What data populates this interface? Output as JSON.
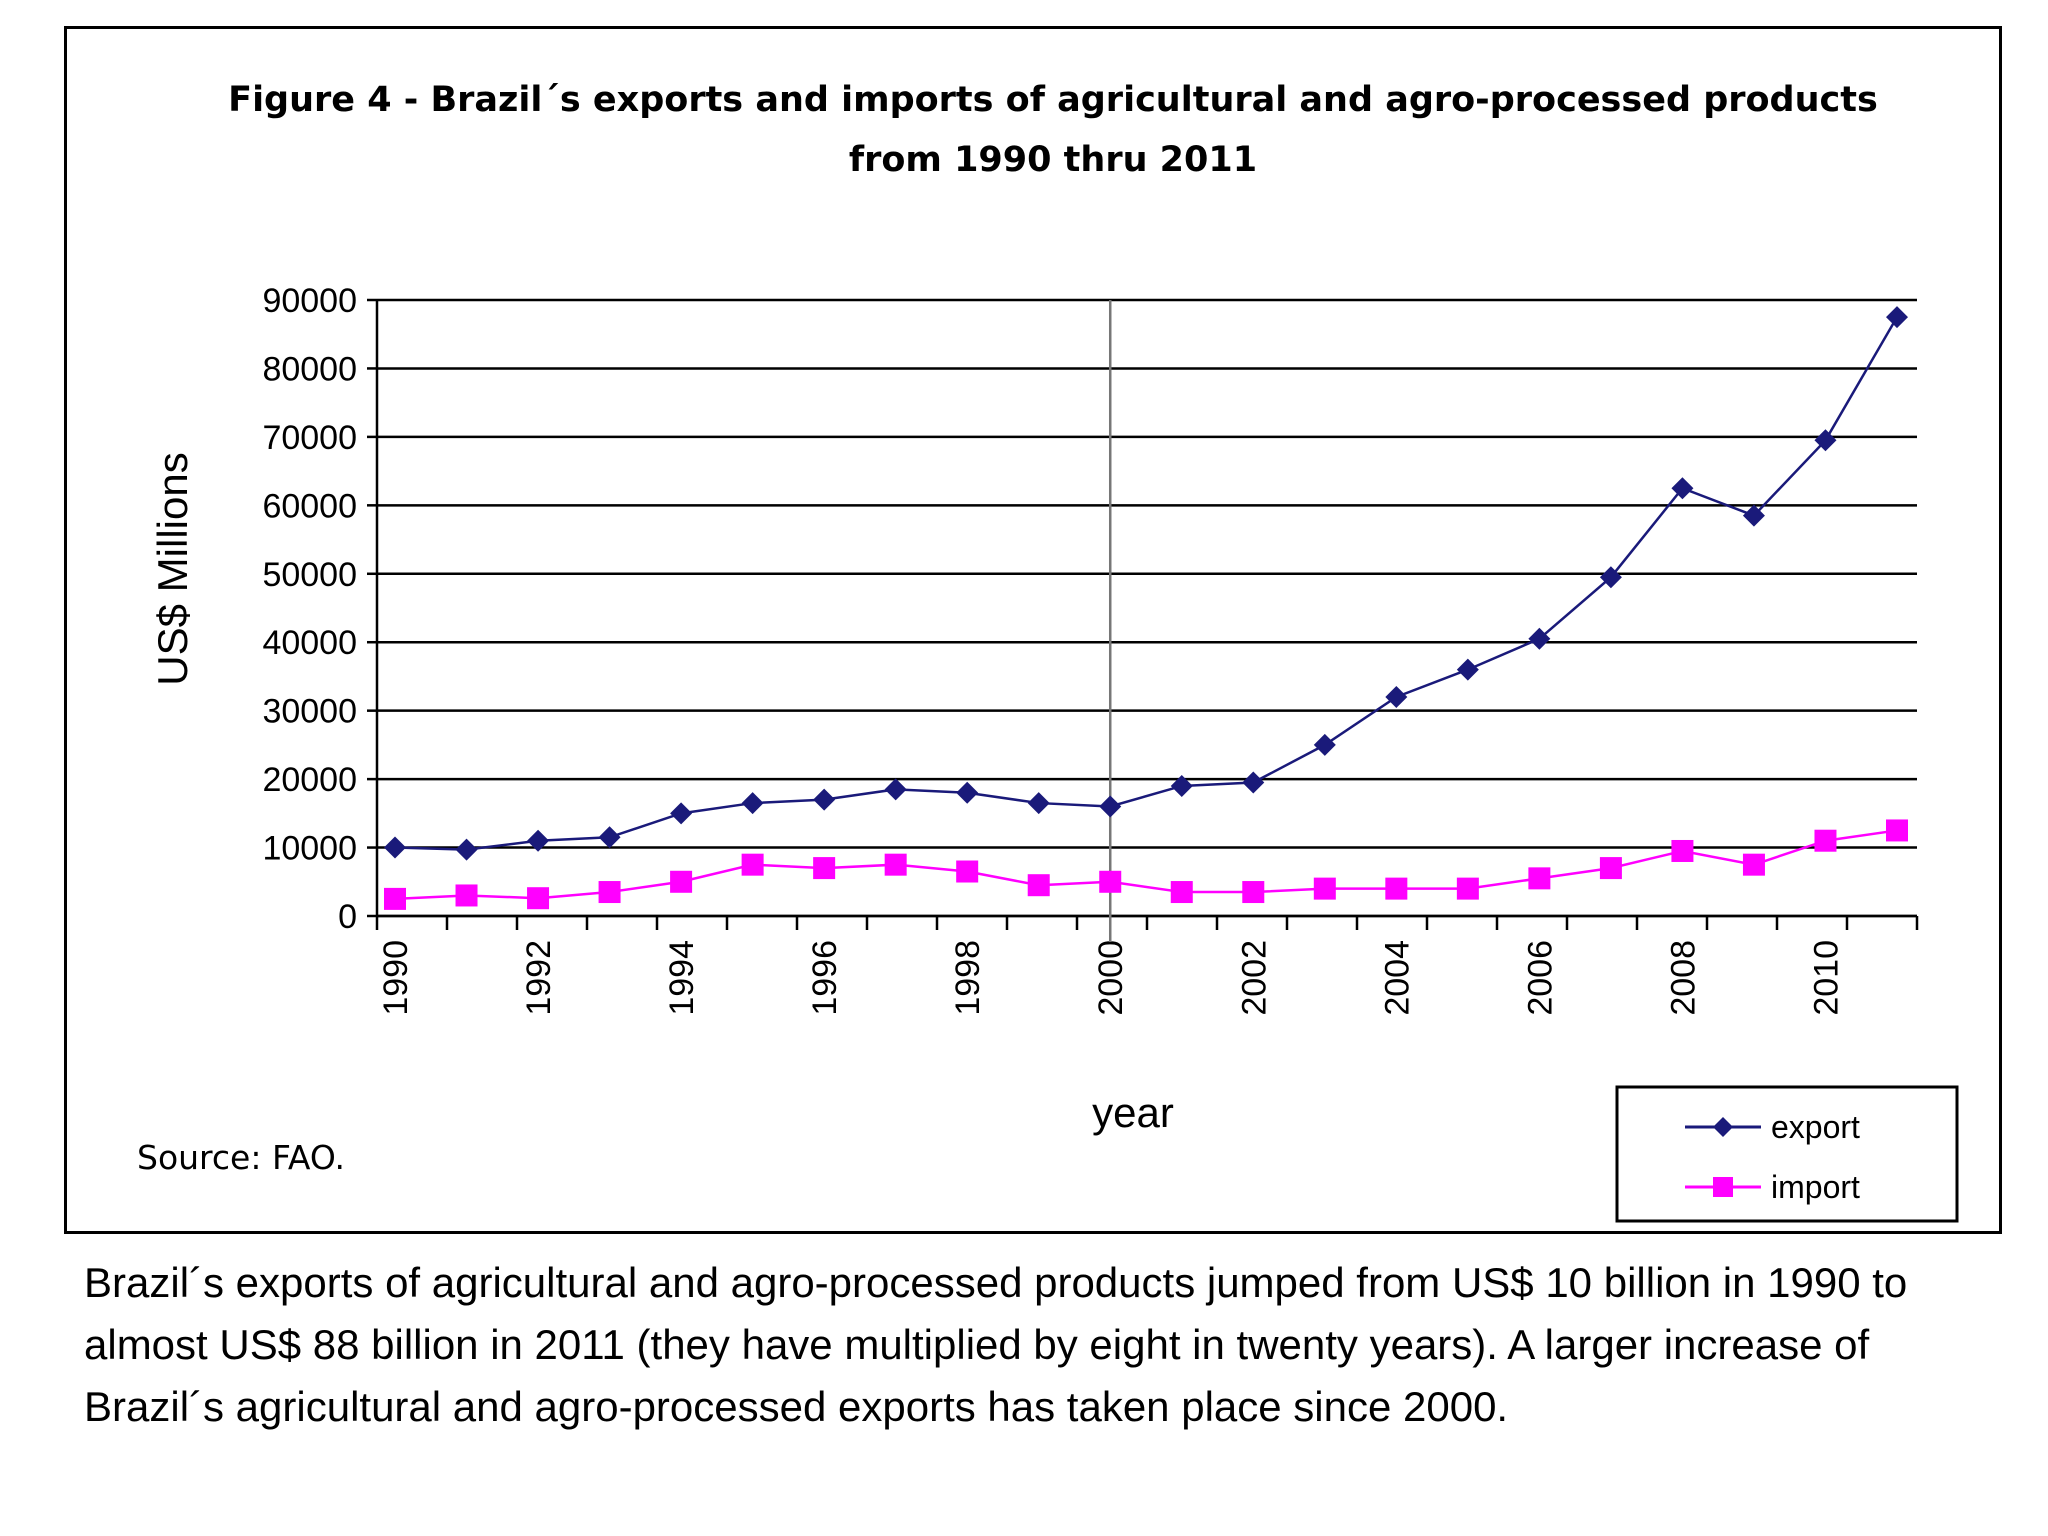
{
  "chart_data": {
    "type": "line",
    "title_line1": "Figure 4 - Brazil´s exports and imports of agricultural and agro-processed products",
    "title_line2": "from 1990 thru 2011",
    "xlabel": "year",
    "ylabel": "US$ Millions",
    "ylim": [
      0,
      90000
    ],
    "yticks": [
      "0",
      "10000",
      "20000",
      "30000",
      "40000",
      "50000",
      "60000",
      "70000",
      "80000",
      "90000"
    ],
    "ytick_values": [
      0,
      10000,
      20000,
      30000,
      40000,
      50000,
      60000,
      70000,
      80000,
      90000
    ],
    "xticks": [
      "1990",
      "1992",
      "1994",
      "1996",
      "1998",
      "2000",
      "2002",
      "2004",
      "2006",
      "2008",
      "2010"
    ],
    "x": [
      1990,
      1991,
      1992,
      1993,
      1994,
      1995,
      1996,
      1997,
      1998,
      1999,
      2000,
      2001,
      2002,
      2003,
      2004,
      2005,
      2006,
      2007,
      2008,
      2009,
      2010,
      2011
    ],
    "series": [
      {
        "name": "export",
        "color": "#1a1a7a",
        "marker": "diamond",
        "values": [
          10000,
          9700,
          11000,
          11500,
          15000,
          16500,
          17000,
          18500,
          18000,
          16500,
          16000,
          19000,
          19500,
          25000,
          32000,
          36000,
          40500,
          49500,
          62500,
          58500,
          69500,
          87500
        ]
      },
      {
        "name": "import",
        "color": "#ff00ff",
        "marker": "square",
        "values": [
          2500,
          3000,
          2600,
          3500,
          5000,
          7500,
          7000,
          7500,
          6500,
          4500,
          5000,
          3500,
          3500,
          4000,
          4000,
          4000,
          5500,
          7000,
          9500,
          7500,
          11000,
          12500
        ]
      }
    ],
    "reference_line_x": 2000,
    "grid": "horizontal",
    "legend_position": "bottom-right"
  },
  "source_note": "Source: FAO.",
  "caption": "Brazil´s exports of agricultural and agro-processed products jumped from US$ 10 billion in 1990 to almost US$ 88 billion in 2011 (they have multiplied by eight in twenty years). A larger increase of Brazil´s agricultural and agro-processed exports has taken place since 2000."
}
